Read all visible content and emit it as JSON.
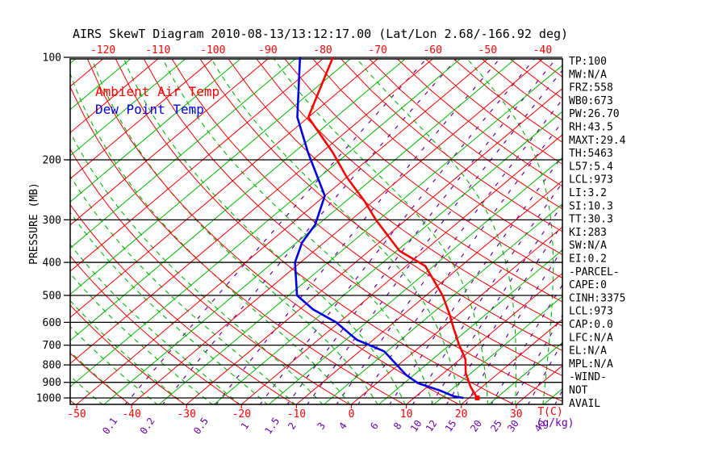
{
  "title": "AIRS SkewT Diagram 2010-08-13/13:12:17.00 (Lat/Lon 2.68/-166.92 deg)",
  "legend": {
    "air_temp_label": "Ambient Air Temp",
    "dew_point_label": "Dew Point Temp"
  },
  "axes": {
    "pressure_axis_label": "PRESSURE (MB)",
    "pressure_ticks": [
      "100",
      "200",
      "300",
      "400",
      "500",
      "600",
      "700",
      "800",
      "900",
      "1000"
    ],
    "top_temp_labels": [
      "-120",
      "-110",
      "-100",
      "-90",
      "-80",
      "-70",
      "-60",
      "-50",
      "-40"
    ],
    "bottom_temp_labels": [
      "-50",
      "-40",
      "-30",
      "-20",
      "-10",
      "0",
      "10",
      "20",
      "30"
    ],
    "temp_unit_label": "T(C)",
    "mixing_ratio_labels": [
      "0.1",
      "0.2",
      "0.5",
      "1",
      "1.5",
      "2",
      "3",
      "4",
      "6",
      "8",
      "10",
      "12",
      "15",
      "20",
      "25",
      "30",
      "40"
    ],
    "mixing_unit_label": "(g/kg)"
  },
  "stats_panel": [
    "TP:100",
    "MW:N/A",
    "FRZ:558",
    "WB0:673",
    "PW:26.70",
    "RH:43.5",
    "MAXT:29.4",
    "TH:5463",
    "L57:5.4",
    "LCL:973",
    "LI:3.2",
    "SI:10.3",
    "TT:30.3",
    "KI:283",
    "SW:N/A",
    "EI:0.2",
    "-PARCEL-",
    "CAPE:0",
    "CINH:3375",
    "LCL:973",
    "CAP:0.0",
    "LFC:N/A",
    "EL:N/A",
    "MPL:N/A",
    "-WIND-",
    "NOT",
    "AVAIL"
  ],
  "colors": {
    "isotherm_green": "#00b400",
    "isotherm_red": "#ee0000",
    "dry_adiabat_red": "#ee0000",
    "moist_adiabat_green": "#00b400",
    "mixing_purple": "#6600aa",
    "temp_profile_red": "#ff0000",
    "dewpoint_blue": "#0000e6",
    "grid_black": "#000000",
    "label_red": "#ff0000",
    "text_black": "#000000"
  },
  "chart_data": {
    "type": "line",
    "title": "AIRS SkewT Diagram 2010-08-13/13:12:17.00 (Lat/Lon 2.68/-166.92 deg)",
    "x_axis": {
      "label": "T(C)",
      "skewed": true,
      "top_ticks_c": [
        -120,
        -110,
        -100,
        -90,
        -80,
        -70,
        -60,
        -50,
        -40
      ],
      "bottom_ticks_c": [
        -50,
        -40,
        -30,
        -20,
        -10,
        0,
        10,
        20,
        30
      ]
    },
    "y_axis": {
      "label": "PRESSURE (MB)",
      "scale": "log",
      "ticks_mb": [
        100,
        200,
        300,
        400,
        500,
        600,
        700,
        800,
        900,
        1000
      ],
      "range_mb": [
        100,
        1050
      ]
    },
    "isotherm_interval_c": 5,
    "mixing_ratio_lines_g_kg": [
      0.1,
      0.2,
      0.5,
      1,
      1.5,
      2,
      3,
      4,
      6,
      8,
      10,
      12,
      15,
      20,
      25,
      30,
      40
    ],
    "series": [
      {
        "name": "Ambient Air Temp",
        "color": "#ff0000",
        "points_p_mb_t_c": [
          [
            100,
            -78.5
          ],
          [
            150,
            -70
          ],
          [
            190,
            -58
          ],
          [
            225,
            -50
          ],
          [
            265,
            -41.5
          ],
          [
            300,
            -35.5
          ],
          [
            330,
            -30.5
          ],
          [
            370,
            -24.5
          ],
          [
            410,
            -16.5
          ],
          [
            455,
            -11.5
          ],
          [
            500,
            -7
          ],
          [
            570,
            -1.5
          ],
          [
            615,
            1.5
          ],
          [
            695,
            6.5
          ],
          [
            770,
            11
          ],
          [
            845,
            14
          ],
          [
            930,
            18
          ],
          [
            1000,
            21.5
          ]
        ]
      },
      {
        "name": "Dew Point Temp",
        "color": "#0000e6",
        "points_p_mb_t_c": [
          [
            100,
            -84.5
          ],
          [
            150,
            -72
          ],
          [
            190,
            -62.5
          ],
          [
            255,
            -50
          ],
          [
            310,
            -45.5
          ],
          [
            350,
            -44
          ],
          [
            400,
            -41
          ],
          [
            500,
            -33.5
          ],
          [
            550,
            -27.5
          ],
          [
            600,
            -20.5
          ],
          [
            675,
            -13
          ],
          [
            730,
            -5.5
          ],
          [
            855,
            3.5
          ],
          [
            905,
            7.5
          ],
          [
            950,
            13
          ],
          [
            990,
            17
          ],
          [
            1000,
            19
          ]
        ]
      }
    ]
  }
}
